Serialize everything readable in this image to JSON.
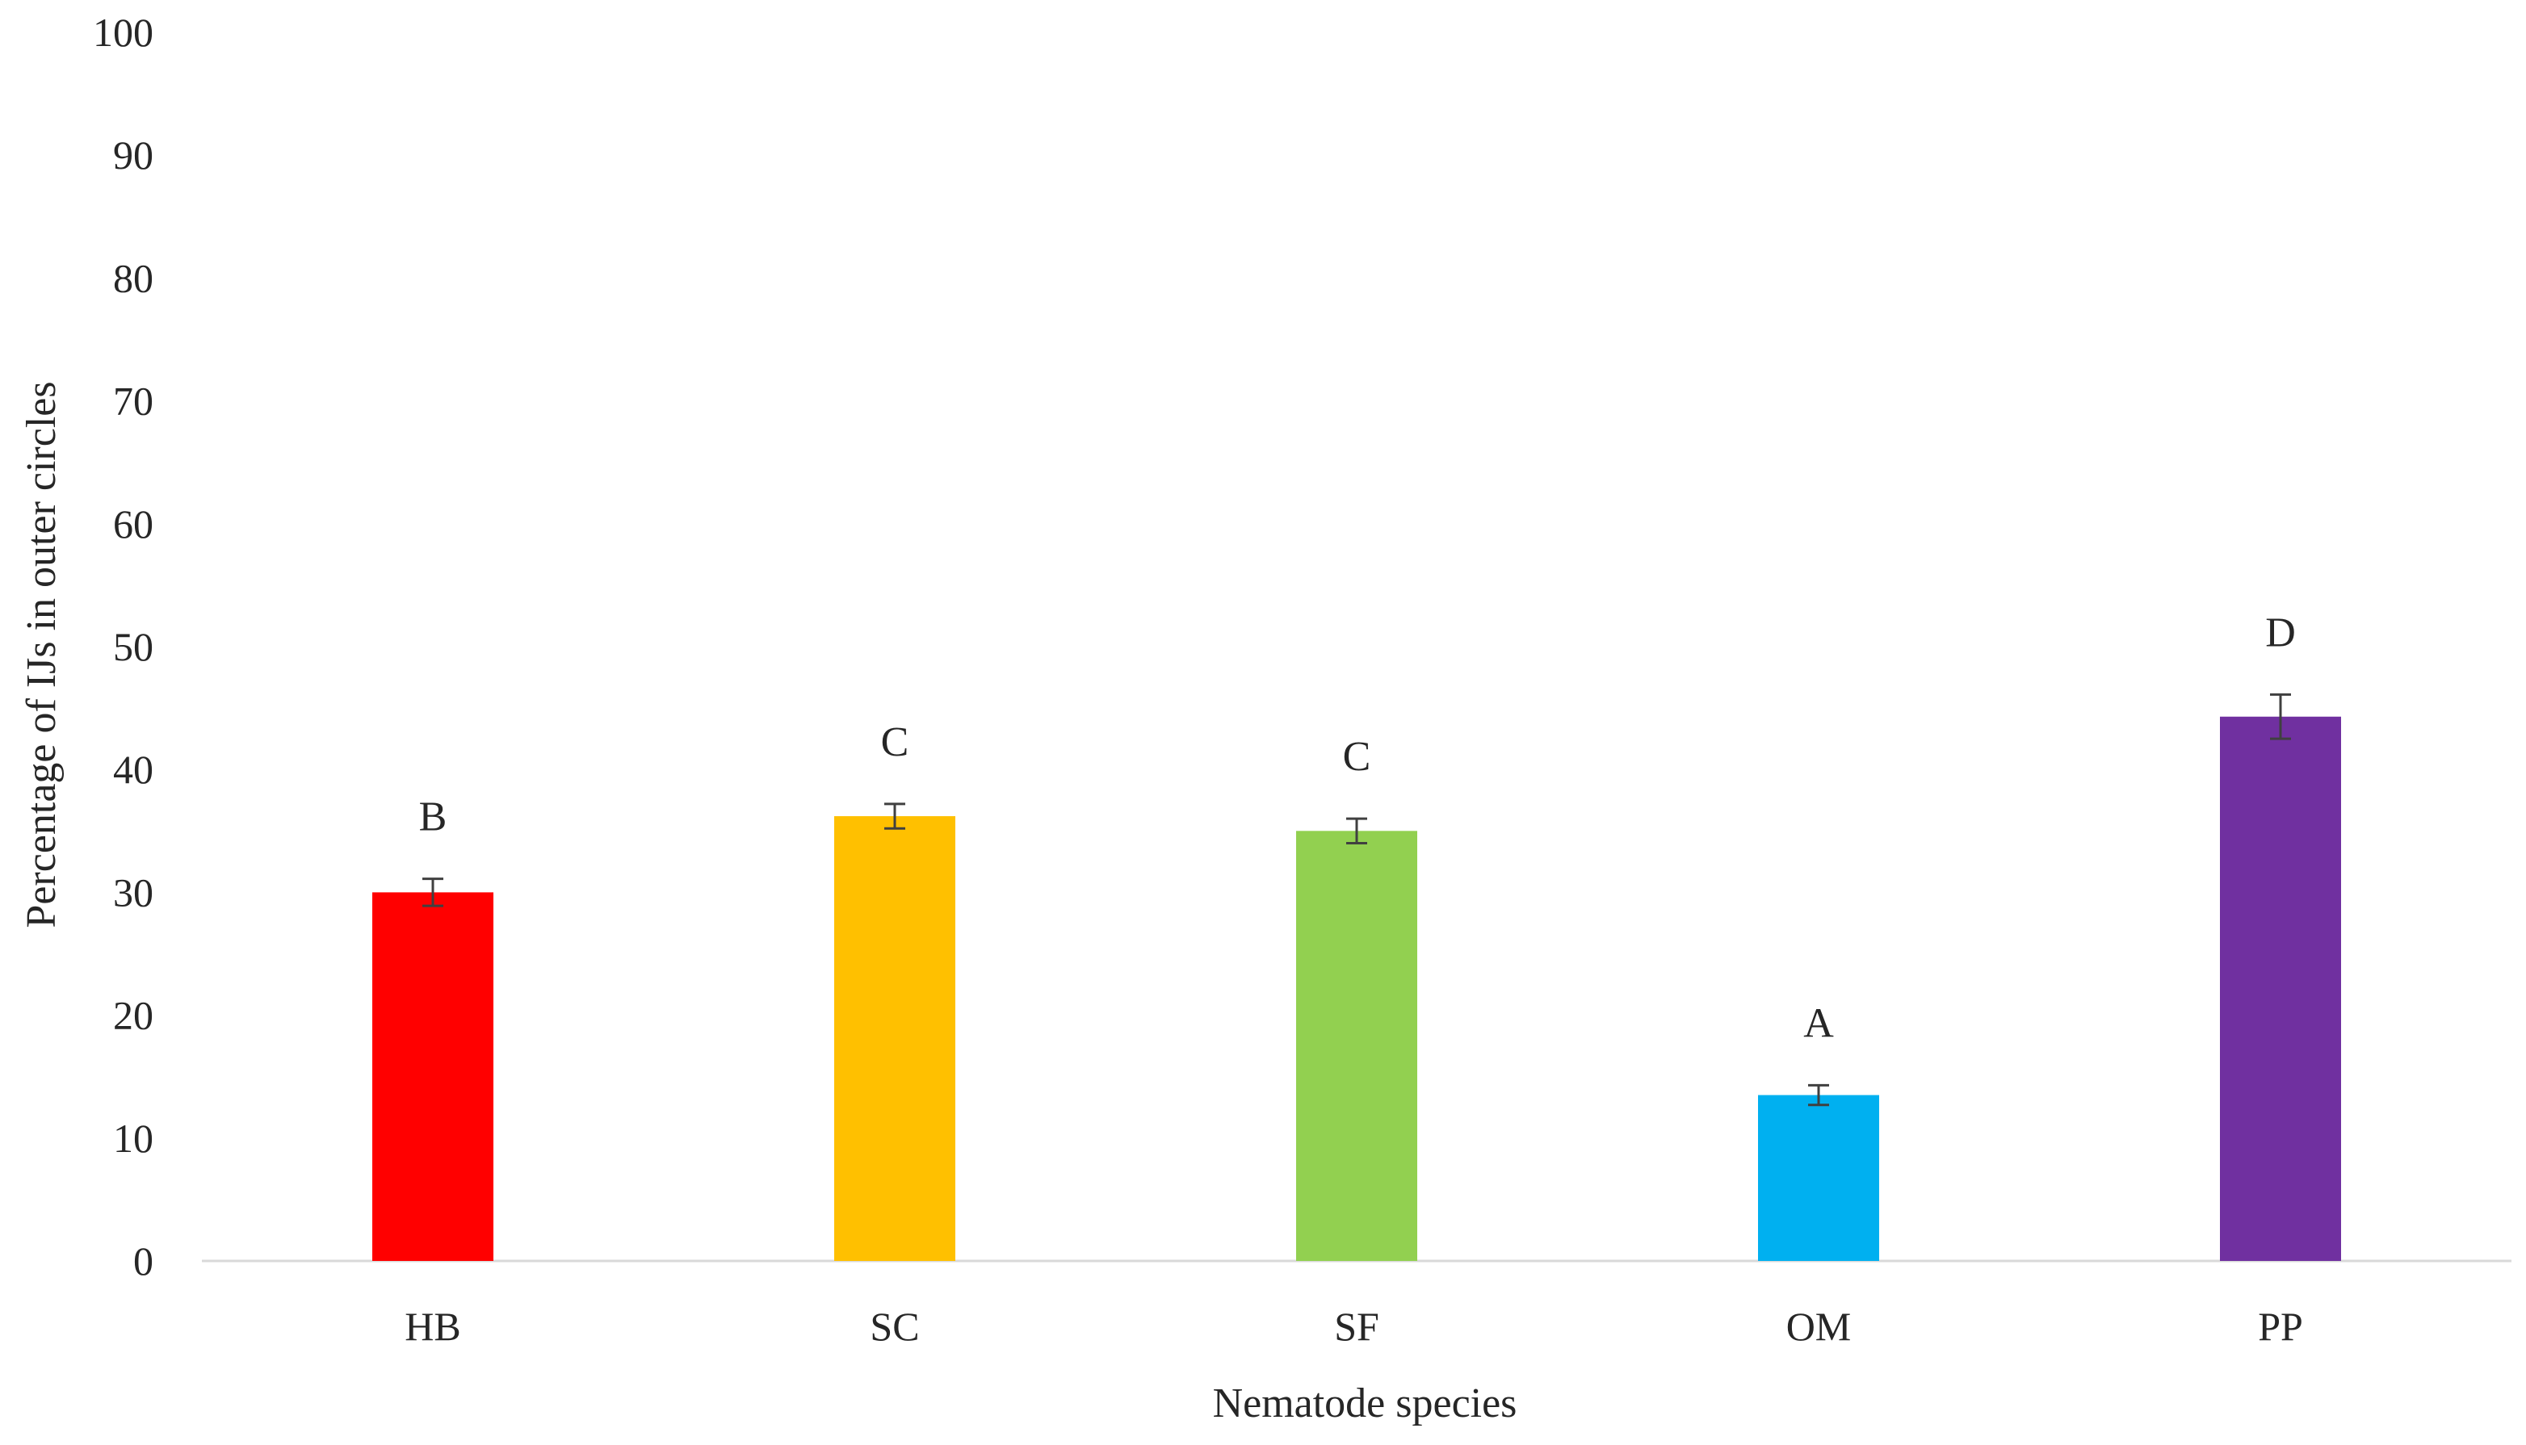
{
  "chart_data": {
    "type": "bar",
    "title": "",
    "xlabel": "Nematode species",
    "ylabel": "Percentage of IJs in outer circles",
    "ylim": [
      0,
      100
    ],
    "yticks": [
      0,
      10,
      20,
      30,
      40,
      50,
      60,
      70,
      80,
      90,
      100
    ],
    "ytick_labels": [
      "0",
      "10",
      "20",
      "30",
      "40",
      "50",
      "60",
      "70",
      "80",
      "90",
      "100"
    ],
    "grid": false,
    "categories": [
      "HB",
      "SC",
      "SF",
      "OM",
      "PP"
    ],
    "values": [
      30,
      36.2,
      35,
      13.5,
      44.3
    ],
    "errors": [
      1.1,
      1.0,
      1.0,
      0.8,
      1.8
    ],
    "significance_letters": [
      "B",
      "C",
      "C",
      "A",
      "D"
    ],
    "colors": [
      "#ff0000",
      "#ffc000",
      "#92d050",
      "#00b0f0",
      "#7030a0"
    ],
    "error_bar_color": "#404040",
    "axis_color": "#d9d9d9"
  }
}
